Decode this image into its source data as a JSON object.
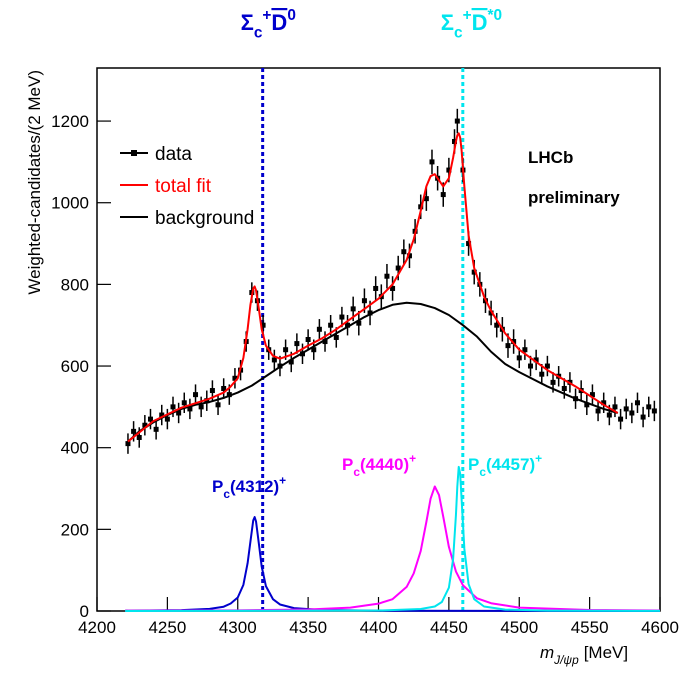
{
  "chart_data": {
    "type": "line",
    "xlim": [
      4200,
      4600
    ],
    "ylim": [
      0,
      1330
    ],
    "xticks": [
      4200,
      4250,
      4300,
      4350,
      4400,
      4450,
      4500,
      4550,
      4600
    ],
    "yticks": [
      0,
      200,
      400,
      600,
      800,
      1000,
      1200
    ],
    "ylabel": "Weighted-candidates/(2 MeV)",
    "xlabel": [
      {
        "text": "m",
        "italic": true
      },
      {
        "text": "J/ψp",
        "pos": "sub",
        "italic": true
      },
      {
        "text": "[MeV]"
      }
    ],
    "annotations": [
      "LHCb",
      "preliminary"
    ],
    "legend": "upper left",
    "series": [
      {
        "name": "data",
        "color": "#000000",
        "style": "points",
        "x": [
          4222,
          4226,
          4230,
          4234,
          4238,
          4242,
          4246,
          4250,
          4254,
          4258,
          4262,
          4266,
          4270,
          4274,
          4278,
          4282,
          4286,
          4290,
          4294,
          4298,
          4302,
          4306,
          4310,
          4314,
          4318,
          4322,
          4326,
          4330,
          4334,
          4338,
          4342,
          4346,
          4350,
          4354,
          4358,
          4362,
          4366,
          4370,
          4374,
          4378,
          4382,
          4386,
          4390,
          4394,
          4398,
          4402,
          4406,
          4410,
          4414,
          4418,
          4422,
          4426,
          4430,
          4434,
          4438,
          4442,
          4446,
          4450,
          4454,
          4456,
          4460,
          4464,
          4468,
          4472,
          4476,
          4480,
          4484,
          4488,
          4492,
          4496,
          4500,
          4504,
          4508,
          4512,
          4516,
          4520,
          4524,
          4528,
          4532,
          4536,
          4540,
          4544,
          4548,
          4552,
          4556,
          4560,
          4564,
          4568,
          4572,
          4576,
          4580,
          4584,
          4588,
          4592,
          4596
        ],
        "values": [
          410,
          440,
          425,
          455,
          470,
          445,
          480,
          470,
          500,
          485,
          510,
          495,
          530,
          500,
          515,
          540,
          505,
          545,
          530,
          570,
          590,
          660,
          780,
          760,
          700,
          640,
          615,
          600,
          640,
          610,
          655,
          630,
          665,
          640,
          690,
          660,
          700,
          670,
          720,
          700,
          740,
          705,
          760,
          730,
          790,
          770,
          820,
          790,
          840,
          880,
          870,
          930,
          990,
          1010,
          1100,
          1060,
          1020,
          1080,
          1150,
          1200,
          1080,
          900,
          830,
          800,
          760,
          730,
          700,
          690,
          650,
          660,
          620,
          640,
          600,
          615,
          580,
          600,
          560,
          575,
          545,
          560,
          520,
          540,
          505,
          530,
          490,
          510,
          480,
          500,
          470,
          495,
          485,
          510,
          475,
          500,
          490
        ],
        "errors": [
          25,
          25,
          25,
          25,
          25,
          25,
          25,
          25,
          25,
          25,
          25,
          25,
          25,
          25,
          25,
          25,
          25,
          25,
          25,
          25,
          25,
          25,
          25,
          25,
          25,
          25,
          25,
          25,
          25,
          25,
          25,
          25,
          25,
          25,
          25,
          25,
          25,
          25,
          25,
          25,
          30,
          30,
          30,
          30,
          30,
          30,
          30,
          30,
          30,
          30,
          30,
          30,
          30,
          30,
          30,
          30,
          30,
          30,
          30,
          30,
          30,
          30,
          30,
          30,
          30,
          30,
          30,
          30,
          30,
          30,
          25,
          25,
          25,
          25,
          25,
          25,
          25,
          25,
          25,
          25,
          25,
          25,
          25,
          25,
          25,
          25,
          25,
          25,
          25,
          25,
          25,
          25,
          25,
          25,
          25
        ]
      },
      {
        "name": "total fit",
        "color": "#ff0000",
        "style": "line",
        "x": [
          4222,
          4240,
          4260,
          4280,
          4290,
          4295,
          4300,
          4304,
          4307,
          4309,
          4311,
          4312,
          4313,
          4315,
          4317,
          4320,
          4325,
          4330,
          4340,
          4350,
          4360,
          4370,
          4380,
          4390,
          4400,
          4410,
          4420,
          4425,
          4430,
          4434,
          4437,
          4440,
          4443,
          4446,
          4450,
          4453,
          4455,
          4456,
          4457,
          4458,
          4459,
          4461,
          4464,
          4468,
          4475,
          4480,
          4490,
          4500,
          4520,
          4540,
          4560,
          4570
        ],
        "values": [
          415,
          465,
          498,
          520,
          535,
          550,
          570,
          620,
          690,
          750,
          790,
          795,
          785,
          740,
          690,
          650,
          625,
          618,
          630,
          650,
          668,
          690,
          715,
          740,
          765,
          800,
          860,
          910,
          980,
          1040,
          1065,
          1070,
          1055,
          1040,
          1060,
          1110,
          1150,
          1165,
          1170,
          1160,
          1130,
          1040,
          920,
          840,
          770,
          735,
          680,
          640,
          590,
          550,
          505,
          485
        ]
      },
      {
        "name": "background",
        "color": "#000000",
        "style": "line",
        "x": [
          4222,
          4230,
          4240,
          4250,
          4260,
          4270,
          4280,
          4290,
          4300,
          4310,
          4320,
          4330,
          4340,
          4350,
          4360,
          4370,
          4380,
          4390,
          4400,
          4410,
          4420,
          4430,
          4440,
          4450,
          4460,
          4470,
          4480,
          4490,
          4500,
          4520,
          4540,
          4560,
          4570
        ],
        "values": [
          415,
          440,
          462,
          480,
          495,
          505,
          512,
          522,
          535,
          552,
          575,
          598,
          620,
          640,
          660,
          680,
          700,
          720,
          737,
          750,
          755,
          752,
          742,
          725,
          700,
          672,
          635,
          605,
          585,
          550,
          520,
          495,
          485
        ]
      },
      {
        "color": "#0000cc",
        "style": "line",
        "label": [
          {
            "text": "P"
          },
          {
            "text": "c",
            "pos": "sub"
          },
          {
            "text": "(4312)"
          },
          {
            "text": "+",
            "pos": "sup"
          }
        ],
        "x": [
          4220,
          4260,
          4280,
          4290,
          4295,
          4300,
          4304,
          4307,
          4309,
          4311,
          4312,
          4313,
          4315,
          4317,
          4320,
          4325,
          4330,
          4340,
          4360,
          4400,
          4500,
          4600
        ],
        "values": [
          0.7,
          2.1,
          5.3,
          10.5,
          18.4,
          33,
          64,
          117,
          170,
          222,
          230,
          219,
          165,
          109,
          61,
          29,
          16,
          7,
          2.3,
          0.7,
          0.2,
          0.1
        ]
      },
      {
        "color": "#ff00ff",
        "style": "line",
        "label": [
          {
            "text": "P"
          },
          {
            "text": "c",
            "pos": "sub"
          },
          {
            "text": "(4440)"
          },
          {
            "text": "+",
            "pos": "sup"
          }
        ],
        "x": [
          4220,
          4300,
          4350,
          4380,
          4400,
          4410,
          4420,
          4425,
          4430,
          4434,
          4437,
          4440,
          4443,
          4446,
          4450,
          4455,
          4460,
          4470,
          4480,
          4500,
          4550,
          4600
        ],
        "values": [
          0.6,
          1.6,
          3.7,
          8.2,
          18,
          29,
          59,
          92,
          147,
          218,
          275,
          305,
          284,
          231,
          157,
          97,
          63,
          31,
          19,
          8.2,
          2.5,
          1.2
        ]
      },
      {
        "color": "#00e5ee",
        "style": "line",
        "label": [
          {
            "text": "P"
          },
          {
            "text": "c",
            "pos": "sub"
          },
          {
            "text": "(4457)"
          },
          {
            "text": "+",
            "pos": "sup"
          }
        ],
        "x": [
          4220,
          4400,
          4430,
          4440,
          4445,
          4450,
          4453,
          4455,
          4456,
          4457,
          4458,
          4459,
          4461,
          4464,
          4468,
          4475,
          4490,
          4520,
          4600
        ],
        "values": [
          0.06,
          1.1,
          4.8,
          11,
          22,
          57,
          127,
          234,
          305,
          353,
          337,
          277,
          152,
          66,
          29,
          11,
          3.4,
          0.9,
          0.2
        ]
      }
    ],
    "vlines": [
      {
        "x": 4317.7,
        "color": "#0000cc",
        "label": [
          {
            "text": "Σ"
          },
          {
            "text": "c",
            "pos": "sub"
          },
          {
            "text": "+",
            "pos": "sup"
          },
          {
            "text": "D",
            "bar": true
          },
          {
            "text": "0",
            "pos": "sup"
          }
        ]
      },
      {
        "x": 4459.9,
        "color": "#00e5ee",
        "label": [
          {
            "text": "Σ"
          },
          {
            "text": "c",
            "pos": "sub"
          },
          {
            "text": "+",
            "pos": "sup"
          },
          {
            "text": "D",
            "bar": true
          },
          {
            "text": "*0",
            "pos": "sup"
          }
        ]
      }
    ]
  }
}
